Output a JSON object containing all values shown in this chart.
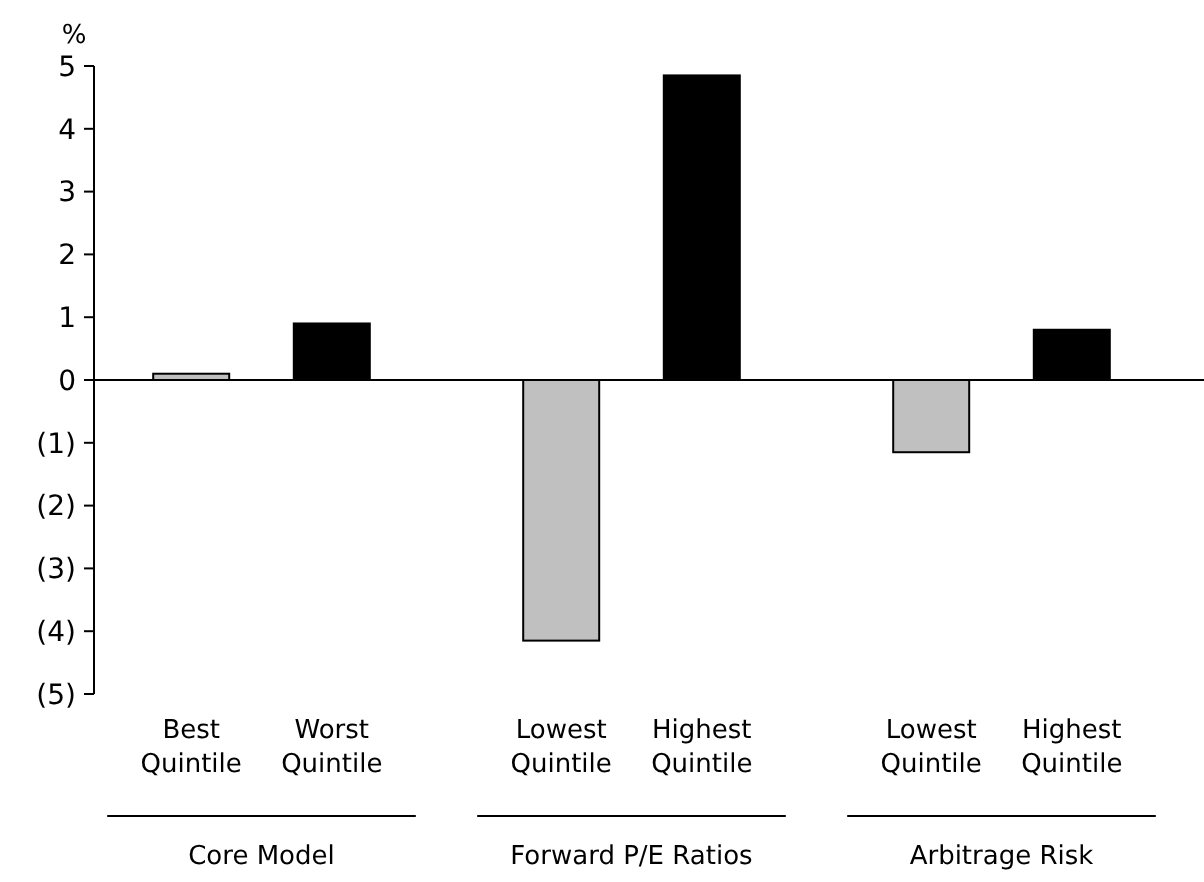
{
  "chart_data": {
    "type": "bar",
    "ylabel": "%",
    "categories": [
      "Best Quintile",
      "Worst Quintile",
      "Lowest Quintile",
      "Highest Quintile",
      "Lowest Quintile",
      "Highest Quintile"
    ],
    "values": [
      0.1,
      0.9,
      -4.15,
      4.85,
      -1.15,
      0.8
    ],
    "colors": [
      "#c0c0c0",
      "#000000",
      "#c0c0c0",
      "#000000",
      "#c0c0c0",
      "#000000"
    ],
    "ylim": [
      -5,
      5
    ],
    "yticks": [
      {
        "value": -5,
        "label": "(5)"
      },
      {
        "value": -4,
        "label": "(4)"
      },
      {
        "value": -3,
        "label": "(3)"
      },
      {
        "value": -2,
        "label": "(2)"
      },
      {
        "value": -1,
        "label": "(1)"
      },
      0,
      1,
      2,
      3,
      4,
      5
    ],
    "annotations": [
      "Core Model",
      "Forward P/E Ratios",
      "Arbitrage Risk"
    ]
  }
}
